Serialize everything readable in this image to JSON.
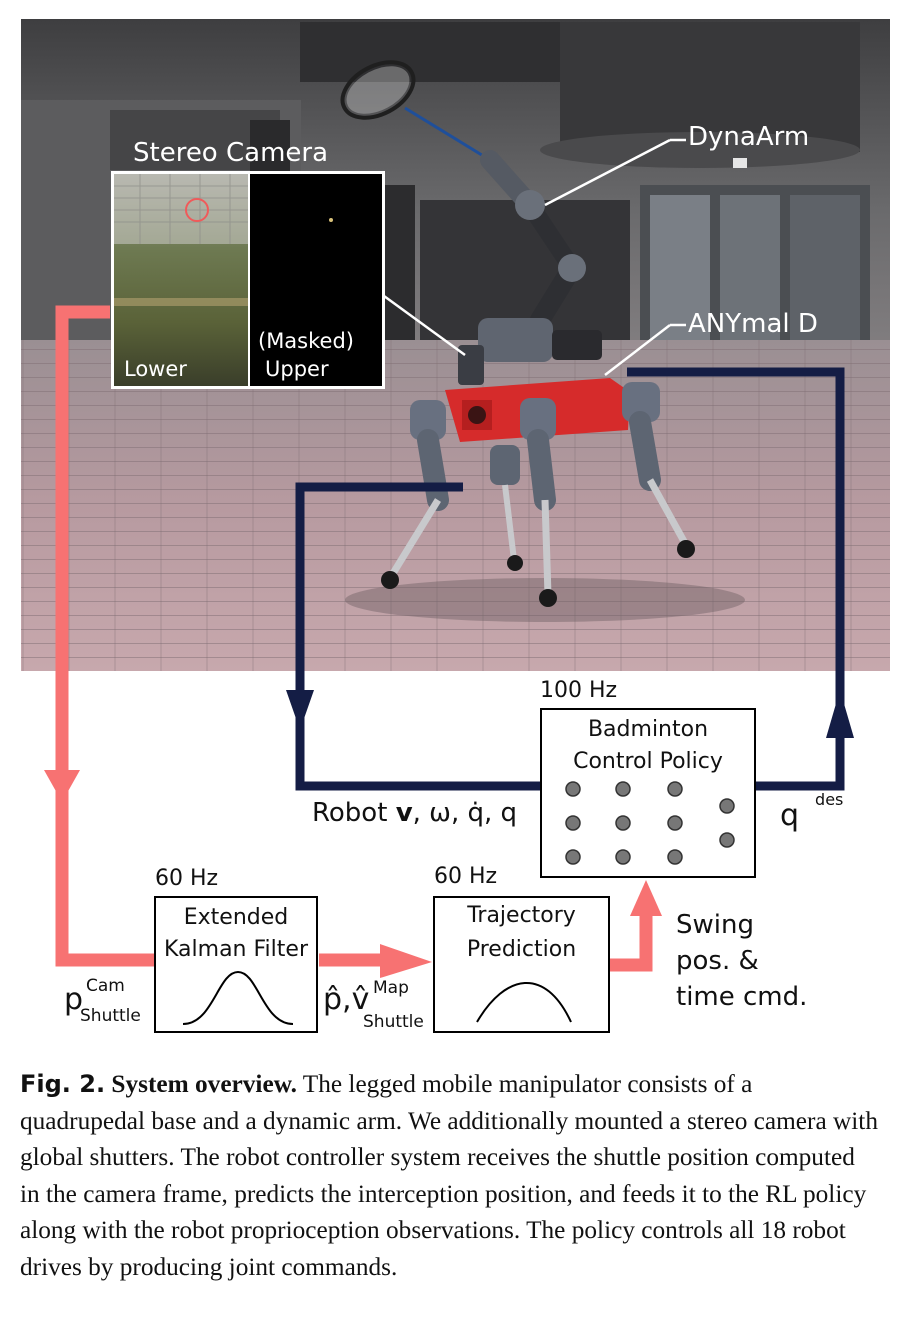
{
  "photo": {
    "label_stereo_camera": "Stereo Camera",
    "label_dynaarm": "DynaArm",
    "label_anymal": "ANYmal D",
    "inset_lower_label": "Lower",
    "inset_upper_label_line1": "(Masked)",
    "inset_upper_label_line2": "Upper"
  },
  "diagram": {
    "policy_rate": "100 Hz",
    "policy_title_line1": "Badminton",
    "policy_title_line2": "Control Policy",
    "ekf_rate": "60 Hz",
    "ekf_title_line1": "Extended",
    "ekf_title_line2": "Kalman Filter",
    "traj_rate": "60 Hz",
    "traj_title_line1": "Trajectory",
    "traj_title_line2": "Prediction",
    "robot_obs_prefix": "Robot ",
    "robot_obs_v": "v",
    "robot_obs_rest": ", ω, q̇, q",
    "qdes_base": "q",
    "qdes_sup": "des",
    "p_cam_base": "p",
    "p_cam_sup": "Cam",
    "p_cam_sub": "Shuttle",
    "pv_hat_base": "p̂,v̂",
    "pv_hat_sup": "Map",
    "pv_hat_sub": "Shuttle",
    "swing_line1": "Swing",
    "swing_line2": "pos. &",
    "swing_line3": "time cmd."
  },
  "colors": {
    "salmon_arrow": "#f77272",
    "navy_arrow": "#141d45",
    "robot_red": "#d62b2b"
  },
  "caption": {
    "label": "Fig. 2.",
    "title": "System overview.",
    "body": "The legged mobile manipulator consists of a quadrupedal base and a dynamic arm. We additionally mounted a stereo camera with global shutters. The robot controller system receives the shuttle position computed in the camera frame, predicts the interception position, and feeds it to the RL policy along with the robot proprioception observations. The policy controls all 18 robot drives by producing joint commands."
  }
}
